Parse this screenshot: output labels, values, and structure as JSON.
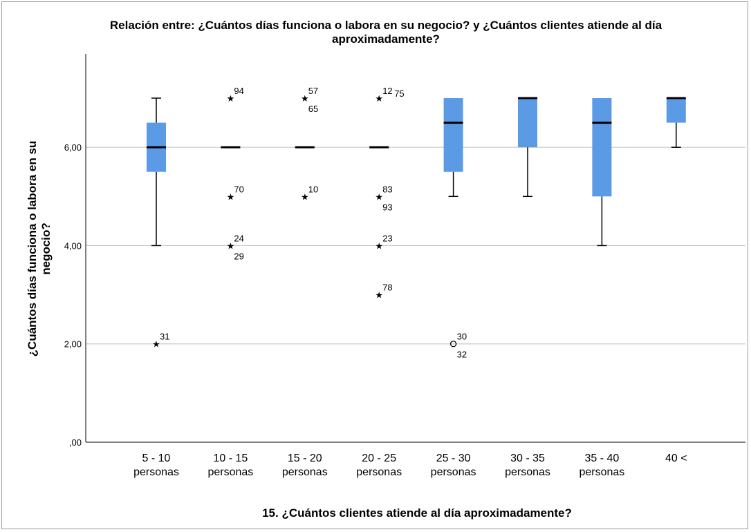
{
  "chart_data": {
    "type": "boxplot",
    "title": "Relación entre: ¿Cuántos días funciona o labora en su negocio? y ¿Cuántos clientes atiende al día aproximadamente?",
    "title_lines": [
      "Relación entre: ¿Cuántos días funciona o labora en su negocio? y ¿Cuántos clientes atiende al día",
      "aproximadamente?"
    ],
    "xlabel": "15. ¿Cuántos clientes atiende al día aproximadamente?",
    "ylabel_lines": [
      "¿Cuántos días funciona o labora en su",
      "negocio?"
    ],
    "ylim": [
      0,
      7.9
    ],
    "yticks": [
      0,
      2,
      4,
      6
    ],
    "ytick_labels": [
      ",00",
      "2,00",
      "4,00",
      "6,00"
    ],
    "gridlines": [
      2,
      4,
      6
    ],
    "box_color": "#5b9be6",
    "categories": [
      {
        "label": [
          "5 - 10",
          "personas"
        ],
        "q1": 5.5,
        "median": 6,
        "q3": 6.5,
        "whisker_low": 4,
        "whisker_high": 7,
        "outliers": [
          {
            "y": 2,
            "marker": "star",
            "labels": [
              "31"
            ]
          }
        ]
      },
      {
        "label": [
          "10 - 15",
          "personas"
        ],
        "q1": 6,
        "median": 6,
        "q3": 6,
        "whisker_low": 6,
        "whisker_high": 6,
        "outliers": [
          {
            "y": 7,
            "marker": "star",
            "labels": [
              "94"
            ]
          },
          {
            "y": 5,
            "marker": "star",
            "labels": [
              "70"
            ]
          },
          {
            "y": 4,
            "marker": "star",
            "labels": [
              "24",
              "29"
            ]
          }
        ]
      },
      {
        "label": [
          "15 - 20",
          "personas"
        ],
        "q1": 6,
        "median": 6,
        "q3": 6,
        "whisker_low": 6,
        "whisker_high": 6,
        "outliers": [
          {
            "y": 7,
            "marker": "star",
            "labels": [
              "57",
              "65"
            ]
          },
          {
            "y": 5,
            "marker": "star",
            "labels": [
              "10"
            ]
          }
        ]
      },
      {
        "label": [
          "20 - 25",
          "personas"
        ],
        "q1": 6,
        "median": 6,
        "q3": 6,
        "whisker_low": 6,
        "whisker_high": 6,
        "outliers": [
          {
            "y": 7,
            "marker": "star",
            "labels": [
              "12",
              "75"
            ],
            "layout": "side"
          },
          {
            "y": 5,
            "marker": "star",
            "labels": [
              "83",
              "93"
            ]
          },
          {
            "y": 4,
            "marker": "star",
            "labels": [
              "23"
            ]
          },
          {
            "y": 3,
            "marker": "star",
            "labels": [
              "78"
            ]
          }
        ]
      },
      {
        "label": [
          "25 - 30",
          "personas"
        ],
        "q1": 5.5,
        "median": 6.5,
        "q3": 7,
        "whisker_low": 5,
        "whisker_high": 7,
        "outliers": [
          {
            "y": 2,
            "marker": "circle",
            "labels": [
              "30",
              "32"
            ]
          }
        ]
      },
      {
        "label": [
          "30 - 35",
          "personas"
        ],
        "q1": 6,
        "median": 7,
        "q3": 7,
        "whisker_low": 5,
        "whisker_high": 7,
        "outliers": []
      },
      {
        "label": [
          "35 - 40",
          "personas"
        ],
        "q1": 5,
        "median": 6.5,
        "q3": 7,
        "whisker_low": 4,
        "whisker_high": 7,
        "outliers": []
      },
      {
        "label": [
          "40 <",
          ""
        ],
        "q1": 6.5,
        "median": 7,
        "q3": 7,
        "whisker_low": 6,
        "whisker_high": 7,
        "outliers": []
      }
    ]
  }
}
